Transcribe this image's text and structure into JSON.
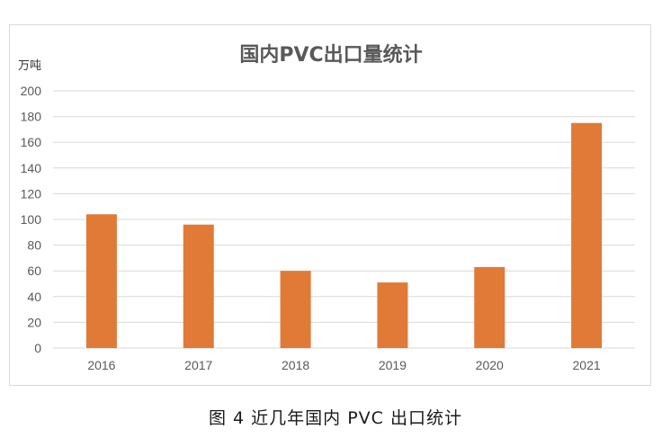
{
  "caption": "图 4  近几年国内 PVC 出口统计",
  "colors": {
    "bar": "#e07a36",
    "grid": "#d9d9d9",
    "axis_text": "#595959",
    "title": "#595959"
  },
  "chart_data": {
    "type": "bar",
    "title": "国内PVC出口量统计",
    "xlabel": "",
    "ylabel": "万吨",
    "categories": [
      "2016",
      "2017",
      "2018",
      "2019",
      "2020",
      "2021"
    ],
    "values": [
      104,
      96,
      60,
      51,
      63,
      175
    ],
    "ylim": [
      0,
      200
    ],
    "yticks": [
      0,
      20,
      40,
      60,
      80,
      100,
      120,
      140,
      160,
      180,
      200
    ],
    "grid": true,
    "legend": "none"
  }
}
